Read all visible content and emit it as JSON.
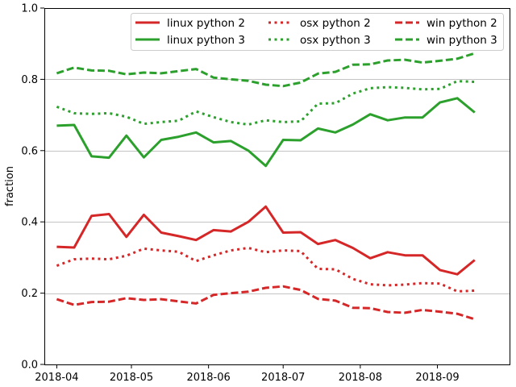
{
  "chart_data": {
    "type": "line",
    "ylabel": "fraction",
    "ylim": [
      0,
      1.0
    ],
    "xlim": [
      "2018-03-27",
      "2018-09-30"
    ],
    "grid": "y",
    "legend_placement": "top-right",
    "legend_columns": 3,
    "x_ticks": [
      {
        "date": "2018-04-01",
        "label": "2018-04"
      },
      {
        "date": "2018-05-01",
        "label": "2018-05"
      },
      {
        "date": "2018-06-01",
        "label": "2018-06"
      },
      {
        "date": "2018-07-01",
        "label": "2018-07"
      },
      {
        "date": "2018-08-01",
        "label": "2018-08"
      },
      {
        "date": "2018-09-01",
        "label": "2018-09"
      }
    ],
    "y_ticks": [
      {
        "value": 0.0,
        "label": "0.0"
      },
      {
        "value": 0.2,
        "label": "0.2"
      },
      {
        "value": 0.4,
        "label": "0.4"
      },
      {
        "value": 0.6,
        "label": "0.6"
      },
      {
        "value": 0.8,
        "label": "0.8"
      },
      {
        "value": 1.0,
        "label": "1.0"
      }
    ],
    "x": [
      "2018-04-01",
      "2018-04-08",
      "2018-04-15",
      "2018-04-22",
      "2018-04-29",
      "2018-05-06",
      "2018-05-13",
      "2018-05-20",
      "2018-05-27",
      "2018-06-03",
      "2018-06-10",
      "2018-06-17",
      "2018-06-24",
      "2018-07-01",
      "2018-07-08",
      "2018-07-15",
      "2018-07-22",
      "2018-07-29",
      "2018-08-05",
      "2018-08-12",
      "2018-08-19",
      "2018-08-26",
      "2018-09-02",
      "2018-09-09",
      "2018-09-16"
    ],
    "series": [
      {
        "name": "linux python 2",
        "color": "#d62728",
        "style": "solid",
        "values": [
          0.33,
          0.328,
          0.417,
          0.422,
          0.358,
          0.42,
          0.37,
          0.36,
          0.349,
          0.377,
          0.373,
          0.4,
          0.443,
          0.37,
          0.371,
          0.338,
          0.349,
          0.327,
          0.298,
          0.315,
          0.306,
          0.306,
          0.265,
          0.253,
          0.293
        ]
      },
      {
        "name": "linux python 3",
        "color": "#2ca02c",
        "style": "solid",
        "values": [
          0.67,
          0.672,
          0.584,
          0.58,
          0.642,
          0.581,
          0.63,
          0.639,
          0.651,
          0.623,
          0.627,
          0.6,
          0.557,
          0.63,
          0.629,
          0.662,
          0.651,
          0.673,
          0.702,
          0.685,
          0.693,
          0.693,
          0.735,
          0.747,
          0.707
        ]
      },
      {
        "name": "osx python 2",
        "color": "#d62728",
        "style": "dotted",
        "values": [
          0.277,
          0.295,
          0.297,
          0.295,
          0.305,
          0.325,
          0.32,
          0.316,
          0.29,
          0.306,
          0.32,
          0.327,
          0.315,
          0.32,
          0.318,
          0.268,
          0.267,
          0.24,
          0.225,
          0.222,
          0.224,
          0.228,
          0.227,
          0.205,
          0.207
        ]
      },
      {
        "name": "osx python 3",
        "color": "#2ca02c",
        "style": "dotted",
        "values": [
          0.723,
          0.705,
          0.703,
          0.705,
          0.695,
          0.675,
          0.68,
          0.684,
          0.71,
          0.694,
          0.68,
          0.673,
          0.685,
          0.68,
          0.682,
          0.732,
          0.733,
          0.76,
          0.775,
          0.778,
          0.776,
          0.772,
          0.773,
          0.795,
          0.793
        ]
      },
      {
        "name": "win python 2",
        "color": "#d62728",
        "style": "dashed",
        "values": [
          0.183,
          0.167,
          0.175,
          0.176,
          0.186,
          0.181,
          0.183,
          0.177,
          0.171,
          0.195,
          0.2,
          0.204,
          0.215,
          0.219,
          0.209,
          0.184,
          0.179,
          0.159,
          0.158,
          0.147,
          0.145,
          0.153,
          0.148,
          0.142,
          0.127
        ]
      },
      {
        "name": "win python 3",
        "color": "#2ca02c",
        "style": "dashed",
        "values": [
          0.817,
          0.833,
          0.825,
          0.824,
          0.814,
          0.819,
          0.817,
          0.823,
          0.829,
          0.805,
          0.8,
          0.796,
          0.785,
          0.781,
          0.791,
          0.816,
          0.821,
          0.841,
          0.842,
          0.853,
          0.855,
          0.847,
          0.852,
          0.858,
          0.873
        ]
      }
    ]
  }
}
